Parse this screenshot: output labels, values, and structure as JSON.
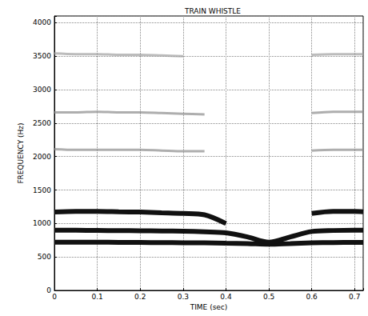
{
  "chart_data": {
    "type": "line",
    "title": "TRAIN WHISTLE",
    "x_label": "TIME (sec)",
    "y_label": "FREQUENCY (Hz)",
    "x": [
      0,
      0.05,
      0.1,
      0.15,
      0.2,
      0.25,
      0.3,
      0.35,
      0.4,
      0.45,
      0.5,
      0.55,
      0.6,
      0.65,
      0.7,
      0.72
    ],
    "series": [
      {
        "color": "#111111",
        "line_style": "solid",
        "values": [
          720,
          720,
          720,
          718,
          716,
          714,
          712,
          710,
          705,
          700,
          690,
          700,
          710,
          715,
          718,
          718
        ]
      },
      {
        "color": "#111111",
        "line_style": "solid",
        "values": [
          900,
          898,
          896,
          894,
          892,
          888,
          884,
          875,
          860,
          800,
          720,
          800,
          880,
          895,
          900,
          900
        ]
      },
      {
        "color": "#111111",
        "line_style": "solid",
        "values": [
          1170,
          1180,
          1180,
          1175,
          1170,
          1160,
          1150,
          1130,
          1000,
          null,
          null,
          null,
          1150,
          1180,
          1180,
          1175
        ]
      },
      {
        "color": "#8c8c8c",
        "line_style": "solid",
        "values": [
          2110,
          2100,
          2100,
          2100,
          2100,
          2090,
          2080,
          2080,
          null,
          null,
          null,
          null,
          2090,
          2100,
          2100,
          2100
        ]
      },
      {
        "color": "#8c8c8c",
        "line_style": "solid",
        "values": [
          2660,
          2660,
          2670,
          2660,
          2660,
          2650,
          2640,
          2630,
          null,
          null,
          null,
          null,
          2650,
          2670,
          2670,
          2670
        ]
      },
      {
        "color": "#a0a0a0",
        "line_style": "solid",
        "values": [
          3540,
          3530,
          3530,
          3520,
          3520,
          3510,
          3500,
          null,
          null,
          null,
          null,
          null,
          3520,
          3530,
          3530,
          3530
        ]
      }
    ],
    "xlim": [
      0,
      0.72
    ],
    "xticks": [
      0,
      0.1,
      0.2,
      0.3,
      0.4,
      0.5,
      0.6,
      0.7
    ],
    "ylim": [
      0,
      4100
    ],
    "yticks": [
      0,
      500,
      1000,
      1500,
      2000,
      2500,
      3000,
      3500,
      4000
    ],
    "grid": true
  }
}
